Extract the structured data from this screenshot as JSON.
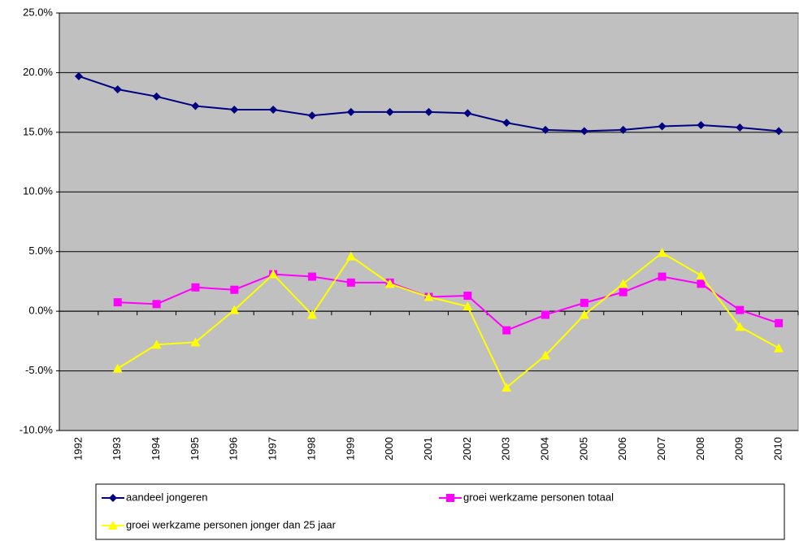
{
  "chart_data": {
    "type": "line",
    "categories": [
      "1992",
      "1993",
      "1994",
      "1995",
      "1996",
      "1997",
      "1998",
      "1999",
      "2000",
      "2001",
      "2002",
      "2003",
      "2004",
      "2005",
      "2006",
      "2007",
      "2008",
      "2009",
      "2010"
    ],
    "series": [
      {
        "name": "aandeel jongeren",
        "color": "#000080",
        "marker": "diamond",
        "values": [
          19.7,
          18.6,
          18.0,
          17.2,
          16.9,
          16.9,
          16.4,
          16.7,
          16.7,
          16.7,
          16.6,
          15.8,
          15.2,
          15.1,
          15.2,
          15.5,
          15.6,
          15.4,
          15.1
        ]
      },
      {
        "name": "groei werkzame personen totaal",
        "color": "#ff00ff",
        "marker": "square",
        "values": [
          null,
          0.75,
          0.6,
          2.0,
          1.8,
          3.1,
          2.9,
          2.4,
          2.4,
          1.2,
          1.3,
          -1.6,
          -0.3,
          0.7,
          1.6,
          2.9,
          2.3,
          0.1,
          -1.0
        ]
      },
      {
        "name": "groei werkzame personen jonger dan 25 jaar",
        "color": "#ffff00",
        "marker": "triangle",
        "values": [
          null,
          -4.8,
          -2.8,
          -2.6,
          0.1,
          3.1,
          -0.3,
          4.6,
          2.3,
          1.2,
          0.4,
          -6.4,
          -3.7,
          -0.3,
          2.3,
          4.9,
          3.0,
          -1.3,
          -3.1
        ]
      }
    ],
    "ylim": [
      -10,
      25
    ],
    "yticks": [
      {
        "value": -10,
        "label": "-10.0%"
      },
      {
        "value": -5,
        "label": "-5.0%"
      },
      {
        "value": 0,
        "label": "0.0%"
      },
      {
        "value": 5,
        "label": "5.0%"
      },
      {
        "value": 10,
        "label": "10.0%"
      },
      {
        "value": 15,
        "label": "15.0%"
      },
      {
        "value": 20,
        "label": "20.0%"
      },
      {
        "value": 25,
        "label": "25.0%"
      }
    ],
    "grid": true,
    "plot_background": "#c0c0c0",
    "legend": "bottom"
  }
}
